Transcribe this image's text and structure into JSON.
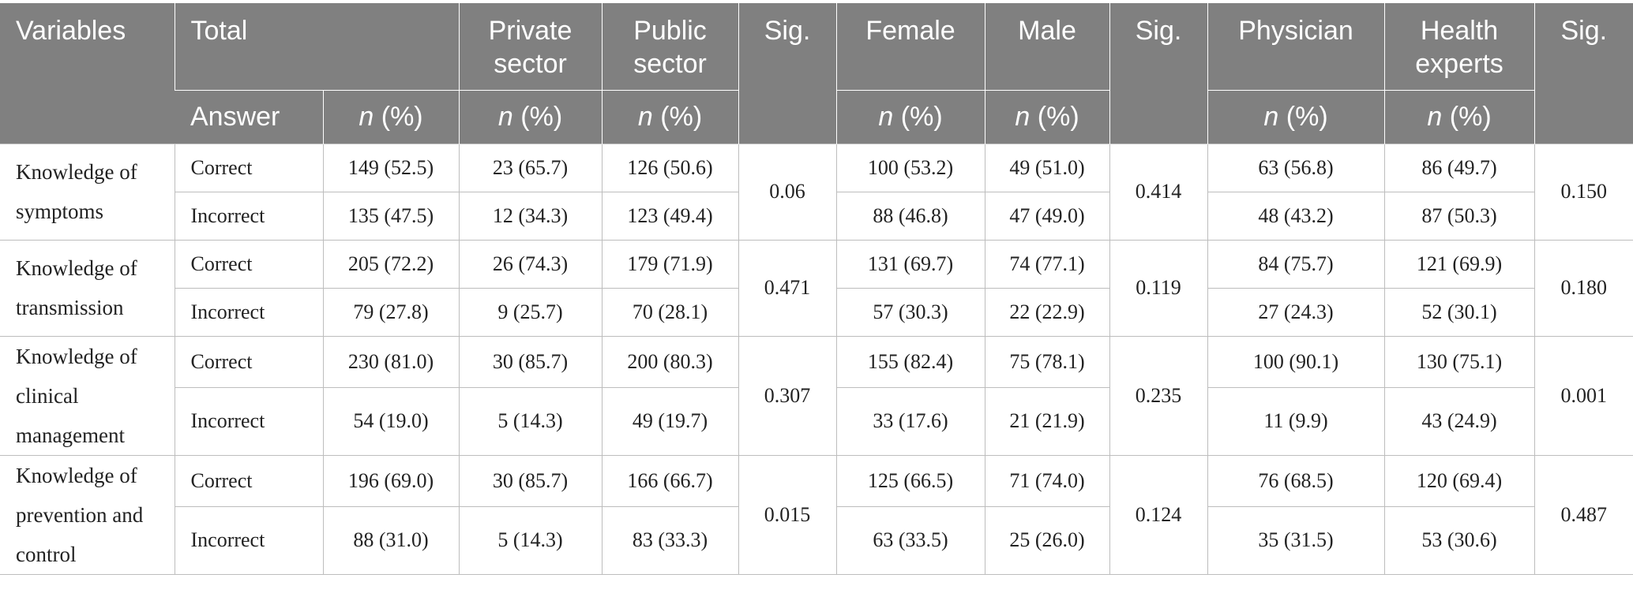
{
  "header": {
    "variables": "Variables",
    "total": "Total",
    "answer": "Answer",
    "private_sector": [
      "Private",
      "sector"
    ],
    "public_sector": [
      "Public",
      "sector"
    ],
    "sig": "Sig.",
    "female": "Female",
    "male": "Male",
    "physician": "Physician",
    "health_experts": [
      "Health",
      "experts"
    ],
    "n_label": "n",
    "pct_label": " (%)"
  },
  "groups": [
    {
      "variable": [
        "Knowledge of",
        "symptoms"
      ],
      "sig_sector": "0.06",
      "sig_gender": "0.414",
      "sig_profession": "0.150",
      "rows": [
        {
          "answer": "Correct",
          "total": "149 (52.5)",
          "private": "23 (65.7)",
          "public": "126 (50.6)",
          "female": "100 (53.2)",
          "male": "49 (51.0)",
          "physician": "63 (56.8)",
          "health_experts": "86 (49.7)"
        },
        {
          "answer": "Incorrect",
          "total": "135 (47.5)",
          "private": "12 (34.3)",
          "public": "123 (49.4)",
          "female": "88 (46.8)",
          "male": "47 (49.0)",
          "physician": "48 (43.2)",
          "health_experts": "87 (50.3)"
        }
      ]
    },
    {
      "variable": [
        "Knowledge of",
        "transmission"
      ],
      "sig_sector": "0.471",
      "sig_gender": "0.119",
      "sig_profession": "0.180",
      "rows": [
        {
          "answer": "Correct",
          "total": "205 (72.2)",
          "private": "26 (74.3)",
          "public": "179 (71.9)",
          "female": "131 (69.7)",
          "male": "74 (77.1)",
          "physician": "84 (75.7)",
          "health_experts": "121 (69.9)"
        },
        {
          "answer": "Incorrect",
          "total": "79 (27.8)",
          "private": "9 (25.7)",
          "public": "70 (28.1)",
          "female": "57 (30.3)",
          "male": "22 (22.9)",
          "physician": "27 (24.3)",
          "health_experts": "52 (30.1)"
        }
      ]
    },
    {
      "variable": [
        "Knowledge of",
        "clinical",
        "management"
      ],
      "sig_sector": "0.307",
      "sig_gender": "0.235",
      "sig_profession": "0.001",
      "rows": [
        {
          "answer": "Correct",
          "total": "230 (81.0)",
          "private": "30 (85.7)",
          "public": "200 (80.3)",
          "female": "155 (82.4)",
          "male": "75 (78.1)",
          "physician": "100 (90.1)",
          "health_experts": "130 (75.1)"
        },
        {
          "answer": "Incorrect",
          "total": "54 (19.0)",
          "private": "5 (14.3)",
          "public": "49 (19.7)",
          "female": "33 (17.6)",
          "male": "21 (21.9)",
          "physician": "11 (9.9)",
          "health_experts": "43 (24.9)"
        }
      ]
    },
    {
      "variable": [
        "Knowledge of",
        "prevention and",
        "control"
      ],
      "sig_sector": "0.015",
      "sig_gender": "0.124",
      "sig_profession": "0.487",
      "rows": [
        {
          "answer": "Correct",
          "total": "196 (69.0)",
          "private": "30 (85.7)",
          "public": "166 (66.7)",
          "female": "125 (66.5)",
          "male": "71 (74.0)",
          "physician": "76 (68.5)",
          "health_experts": "120 (69.4)"
        },
        {
          "answer": "Incorrect",
          "total": "88 (31.0)",
          "private": "5 (14.3)",
          "public": "83 (33.3)",
          "female": "63 (33.5)",
          "male": "25 (26.0)",
          "physician": "35 (31.5)",
          "health_experts": "53 (30.6)"
        }
      ]
    }
  ]
}
